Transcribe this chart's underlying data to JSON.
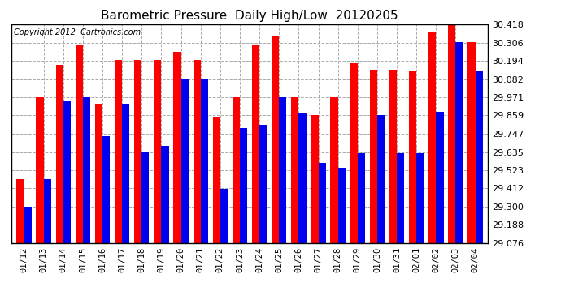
{
  "title": "Barometric Pressure  Daily High/Low  20120205",
  "copyright": "Copyright 2012  Cartronics.com",
  "ylim": [
    29.076,
    30.418
  ],
  "yticks": [
    29.076,
    29.188,
    29.3,
    29.412,
    29.523,
    29.635,
    29.747,
    29.859,
    29.971,
    30.082,
    30.194,
    30.306,
    30.418
  ],
  "dates": [
    "01/12",
    "01/13",
    "01/14",
    "01/15",
    "01/16",
    "01/17",
    "01/18",
    "01/19",
    "01/20",
    "01/21",
    "01/22",
    "01/23",
    "01/24",
    "01/25",
    "01/26",
    "01/27",
    "01/28",
    "01/29",
    "01/30",
    "01/31",
    "02/01",
    "02/02",
    "02/03",
    "02/04"
  ],
  "highs": [
    29.47,
    29.97,
    30.17,
    30.29,
    29.93,
    30.2,
    30.2,
    30.2,
    30.25,
    30.2,
    29.85,
    29.97,
    30.29,
    30.35,
    29.97,
    29.86,
    29.97,
    30.18,
    30.14,
    30.14,
    30.13,
    30.37,
    30.42,
    30.31
  ],
  "lows": [
    29.3,
    29.47,
    29.95,
    29.97,
    29.73,
    29.93,
    29.64,
    29.67,
    30.08,
    30.08,
    29.41,
    29.78,
    29.8,
    29.97,
    29.87,
    29.57,
    29.54,
    29.63,
    29.86,
    29.63,
    29.63,
    29.88,
    30.31,
    30.13
  ],
  "high_color": "#FF0000",
  "low_color": "#0000EE",
  "background_color": "#FFFFFF",
  "grid_color": "#AAAAAA",
  "title_fontsize": 11,
  "copyright_fontsize": 7,
  "bar_width": 0.38
}
